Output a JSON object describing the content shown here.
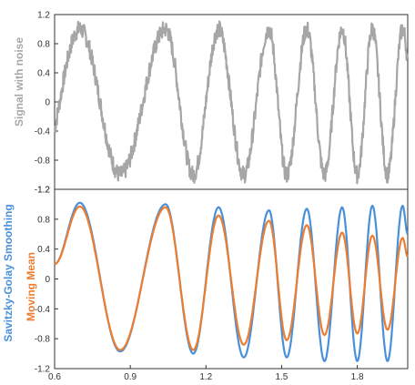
{
  "chart_data": [
    {
      "type": "line",
      "ylabel": "Signal with noise",
      "xlim": [
        0.6,
        2.0
      ],
      "ylim": [
        -1.2,
        1.2
      ],
      "yticks": [
        "1.2",
        "0.8",
        "0.4",
        "0",
        "-0.4",
        "-0.8",
        "-1.2"
      ],
      "series": [
        {
          "color": "#a6a6a6",
          "noise": 0.12,
          "peaks_x": [
            0.7,
            1.04,
            1.25,
            1.45,
            1.6,
            1.74,
            1.86,
            1.98
          ],
          "troughs_x": [
            0.86,
            1.15,
            1.35,
            1.52,
            1.67,
            1.8,
            1.92
          ]
        }
      ]
    },
    {
      "type": "line",
      "ylabel": "",
      "xlim": [
        0.6,
        2.0
      ],
      "ylim": [
        -1.2,
        1.2
      ],
      "xticks": [
        "0.6",
        "0.9",
        "1.2",
        "1.5",
        "1.8"
      ],
      "yticks": [
        "1.2",
        "0.8",
        "0.4",
        "0",
        "-0.4",
        "-0.8",
        "-1.2"
      ],
      "series": [
        {
          "name": "Savitzky-Golay Smoothing",
          "color": "#4a90d9",
          "start_y": 0.2,
          "end_y": 0.6,
          "peaks": [
            [
              0.7,
              1.02
            ],
            [
              1.04,
              1.0
            ],
            [
              1.25,
              0.96
            ],
            [
              1.45,
              0.92
            ],
            [
              1.6,
              0.94
            ],
            [
              1.74,
              0.96
            ],
            [
              1.86,
              0.98
            ],
            [
              1.98,
              0.98
            ]
          ],
          "troughs": [
            [
              0.86,
              -0.97
            ],
            [
              1.15,
              -1.0
            ],
            [
              1.35,
              -1.05
            ],
            [
              1.52,
              -1.05
            ],
            [
              1.67,
              -1.1
            ],
            [
              1.8,
              -1.1
            ],
            [
              1.92,
              -1.1
            ]
          ]
        },
        {
          "name": "Moving Mean",
          "color": "#ed7d31",
          "start_y": 0.2,
          "end_y": 0.3,
          "peaks": [
            [
              0.7,
              0.97
            ],
            [
              1.04,
              0.96
            ],
            [
              1.25,
              0.85
            ],
            [
              1.45,
              0.78
            ],
            [
              1.6,
              0.72
            ],
            [
              1.74,
              0.62
            ],
            [
              1.86,
              0.58
            ],
            [
              1.98,
              0.55
            ]
          ],
          "troughs": [
            [
              0.86,
              -0.95
            ],
            [
              1.15,
              -0.95
            ],
            [
              1.35,
              -0.88
            ],
            [
              1.52,
              -0.82
            ],
            [
              1.67,
              -0.75
            ],
            [
              1.8,
              -0.73
            ],
            [
              1.92,
              -0.68
            ]
          ]
        }
      ]
    }
  ]
}
